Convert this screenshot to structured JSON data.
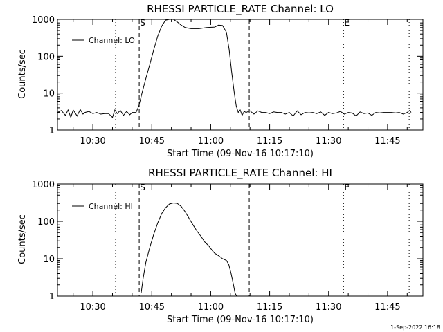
{
  "footer": {
    "timestamp": "1-Sep-2022 16:18"
  },
  "chart_data": [
    {
      "type": "line",
      "title": "RHESSI PARTICLE_RATE Channel: LO",
      "xlabel": "Start Time (09-Nov-16 10:17:10)",
      "ylabel": "Counts/sec",
      "legend": {
        "placement": "top-left",
        "entries": [
          "Channel: LO"
        ]
      },
      "xlim": [
        "10:21",
        "11:54"
      ],
      "ylim": [
        1,
        1000
      ],
      "yscale": "log",
      "x_ticks": [
        "10:30",
        "10:45",
        "11:00",
        "11:15",
        "11:30",
        "11:45"
      ],
      "y_ticks": [
        "1",
        "10",
        "100",
        "1000"
      ],
      "event_markers": [
        {
          "label": "",
          "time": "10:35.8",
          "style": "dotted"
        },
        {
          "label": "S",
          "time": "10:41.8",
          "style": "dashed"
        },
        {
          "label": "",
          "time": "11:09.8",
          "style": "dashed"
        },
        {
          "label": "E",
          "time": "11:33.8",
          "style": "dotted"
        },
        {
          "label": "",
          "time": "11:50.5",
          "style": "dotted"
        }
      ],
      "series": [
        {
          "name": "Channel: LO",
          "x": [
            "10:21",
            "10:22",
            "10:23",
            "10:23.7",
            "10:24.4",
            "10:25",
            "10:26",
            "10:26.8",
            "10:27.5",
            "10:28",
            "10:29",
            "10:30",
            "10:31",
            "10:32",
            "10:33",
            "10:34",
            "10:35",
            "10:35.6",
            "10:36.2",
            "10:37",
            "10:37.8",
            "10:38.6",
            "10:39.4",
            "10:40",
            "10:41",
            "10:41.7",
            "10:42.5",
            "10:43.5",
            "10:44.5",
            "10:45.5",
            "10:46.5",
            "10:47.5",
            "10:48.5",
            "10:49.5",
            "10:50.5",
            "10:51.5",
            "10:52.5",
            "10:53.5",
            "10:55",
            "10:57",
            "10:59",
            "11:01",
            "11:02",
            "11:03",
            "11:04",
            "11:04.7",
            "11:05.3",
            "11:06",
            "11:06.5",
            "11:07",
            "11:07.5",
            "11:08",
            "11:08.5",
            "11:09",
            "11:10",
            "11:11",
            "11:12",
            "11:13",
            "11:14",
            "11:15",
            "11:16",
            "11:17",
            "11:18",
            "11:19",
            "11:20",
            "11:21",
            "11:22",
            "11:23",
            "11:24",
            "11:25",
            "11:26",
            "11:27",
            "11:28",
            "11:29",
            "11:30",
            "11:31",
            "11:32",
            "11:33",
            "11:34",
            "11:35",
            "11:36",
            "11:37",
            "11:38",
            "11:39",
            "11:40",
            "11:41",
            "11:42",
            "11:43",
            "11:44",
            "11:45",
            "11:46",
            "11:47",
            "11:48",
            "11:49",
            "11:50",
            "11:50.6",
            "11:51"
          ],
          "values": [
            3.0,
            3.4,
            2.5,
            3.5,
            2.2,
            3.5,
            2.4,
            3.6,
            2.7,
            3.0,
            3.2,
            2.8,
            3.0,
            2.7,
            2.8,
            2.8,
            2.2,
            3.5,
            2.8,
            3.4,
            2.5,
            3.2,
            2.6,
            3.0,
            3.0,
            4.5,
            10,
            25,
            60,
            150,
            350,
            650,
            950,
            1100,
            1000,
            850,
            700,
            600,
            560,
            560,
            600,
            620,
            700,
            680,
            450,
            150,
            40,
            10,
            4.5,
            3.0,
            3.5,
            2.5,
            3.2,
            3.0,
            3.3,
            2.7,
            3.3,
            3.0,
            3.0,
            2.8,
            3.1,
            3.0,
            3.0,
            2.7,
            3.0,
            2.4,
            3.3,
            2.6,
            3.0,
            2.9,
            3.0,
            2.8,
            3.1,
            2.5,
            3.0,
            2.8,
            2.9,
            3.2,
            2.7,
            3.0,
            2.9,
            2.4,
            3.1,
            2.8,
            2.9,
            2.5,
            3.0,
            2.9,
            3.0,
            3.0,
            3.0,
            2.9,
            3.0,
            2.7,
            3.0,
            3.4,
            3.0
          ]
        }
      ]
    },
    {
      "type": "line",
      "title": "RHESSI PARTICLE_RATE Channel: HI",
      "xlabel": "Start Time (09-Nov-16 10:17:10)",
      "ylabel": "Counts/sec",
      "legend": {
        "placement": "top-left",
        "entries": [
          "Channel: HI"
        ]
      },
      "xlim": [
        "10:21",
        "11:54"
      ],
      "ylim": [
        1,
        1000
      ],
      "yscale": "log",
      "x_ticks": [
        "10:30",
        "10:45",
        "11:00",
        "11:15",
        "11:30",
        "11:45"
      ],
      "y_ticks": [
        "1",
        "10",
        "100",
        "1000"
      ],
      "event_markers": [
        {
          "label": "",
          "time": "10:35.8",
          "style": "dotted"
        },
        {
          "label": "S",
          "time": "10:41.8",
          "style": "dashed"
        },
        {
          "label": "",
          "time": "11:09.8",
          "style": "dashed"
        },
        {
          "label": "E",
          "time": "11:33.8",
          "style": "dotted"
        },
        {
          "label": "",
          "time": "11:50.5",
          "style": "dotted"
        }
      ],
      "series": [
        {
          "name": "Channel: HI",
          "x": [
            "10:42.3",
            "10:42.8",
            "10:43.5",
            "10:44.5",
            "10:45.5",
            "10:46.5",
            "10:47.5",
            "10:48.5",
            "10:49.5",
            "10:50.5",
            "10:51.5",
            "10:52.5",
            "10:53.5",
            "10:54.5",
            "10:55.5",
            "10:56.5",
            "10:57.5",
            "10:58.5",
            "10:59.5",
            "11:00.5",
            "11:01",
            "11:02",
            "11:03",
            "11:04",
            "11:04.6",
            "11:05.2",
            "11:05.8",
            "11:06.2",
            "11:06.6"
          ],
          "values": [
            1.2,
            3,
            8,
            20,
            45,
            90,
            160,
            230,
            290,
            310,
            300,
            250,
            180,
            120,
            80,
            55,
            40,
            28,
            22,
            16,
            14,
            12,
            10,
            9,
            7,
            4,
            2,
            1.2,
            0.9
          ]
        }
      ]
    }
  ]
}
